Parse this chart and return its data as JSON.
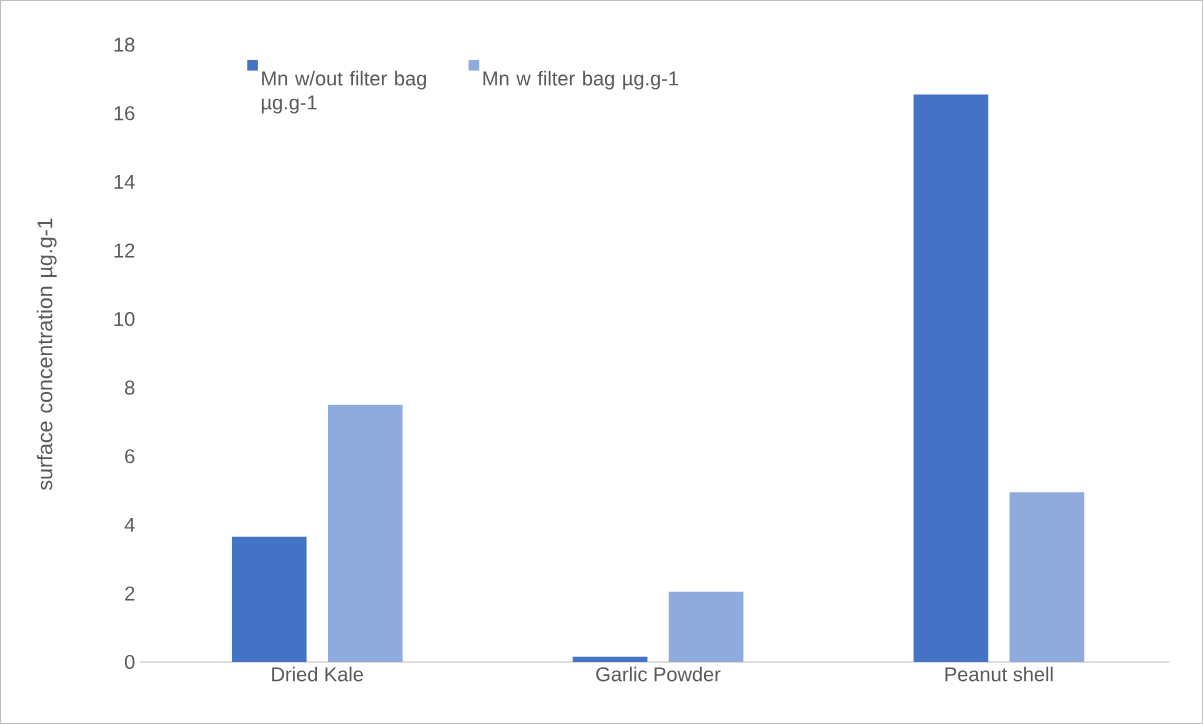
{
  "chart_data": {
    "type": "bar",
    "ylabel": "surface concentration µg.g-1",
    "categories": [
      "Dried Kale",
      "Garlic Powder",
      "Peanut shell"
    ],
    "series": [
      {
        "name": "Mn  w/out filter bag µg.g-1",
        "color": "#4472c4",
        "values": [
          3.65,
          0.15,
          16.55
        ]
      },
      {
        "name": "Mn w filter bag µg.g-1",
        "color": "#8faadc",
        "values": [
          7.5,
          2.05,
          4.95
        ]
      }
    ],
    "ylim": [
      0,
      18
    ],
    "yticks": [
      0,
      2,
      4,
      6,
      8,
      10,
      12,
      14,
      16,
      18
    ],
    "grid": false,
    "legend": "top left"
  }
}
